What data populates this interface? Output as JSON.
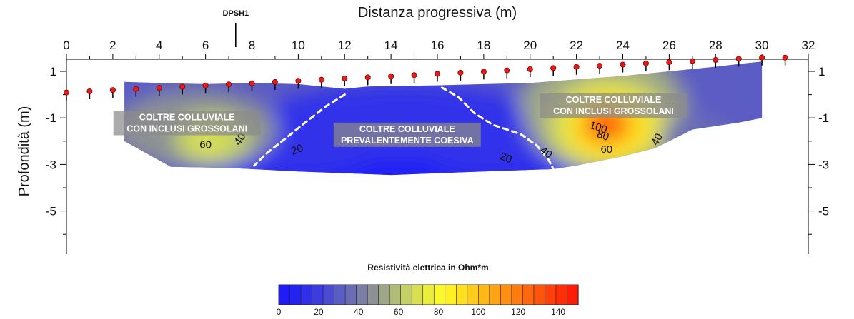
{
  "chart_data": {
    "type": "heatmap",
    "title": "",
    "xlabel": "Distanza progressiva (m)",
    "ylabel": "Profondità (m)",
    "xlim": [
      0,
      32
    ],
    "ylim": [
      -6,
      1.6
    ],
    "x_ticks": [
      "0",
      "2",
      "4",
      "6",
      "8",
      "10",
      "12",
      "14",
      "16",
      "18",
      "20",
      "22",
      "24",
      "26",
      "28",
      "30",
      "32"
    ],
    "y_ticks": [
      "1",
      "-1",
      "-3",
      "-5"
    ],
    "y_tick_values": [
      1,
      -1,
      -3,
      -5
    ],
    "electrodes": {
      "x": [
        0,
        1,
        2,
        3,
        4,
        5,
        6,
        7,
        8,
        9,
        10,
        11,
        12,
        13,
        14,
        15,
        16,
        17,
        18,
        19,
        20,
        21,
        22,
        23,
        24,
        25,
        26,
        27,
        28,
        29,
        30,
        31
      ],
      "y": [
        0,
        0.05,
        0.1,
        0.15,
        0.2,
        0.25,
        0.3,
        0.35,
        0.4,
        0.45,
        0.5,
        0.55,
        0.6,
        0.65,
        0.7,
        0.75,
        0.8,
        0.85,
        0.9,
        0.95,
        1.0,
        1.05,
        1.1,
        1.15,
        1.2,
        1.25,
        1.3,
        1.35,
        1.4,
        1.45,
        1.5,
        1.5
      ]
    },
    "marker": {
      "label": "DPSH1",
      "x": 7.3
    },
    "zones": [
      {
        "line1": "COLTRE COLLUVIALE",
        "line2": "CON INCLUSI GROSSOLANI",
        "x": 5.2,
        "y": -1.1
      },
      {
        "line1": "COLTRE COLLUVIALE",
        "line2": "PREVALENTEMENTE COESIVA",
        "x": 14.7,
        "y": -1.6
      },
      {
        "line1": "COLTRE COLLUVIALE",
        "line2": "CON INCLUSI GROSSOLANI",
        "x": 23.6,
        "y": -0.35
      }
    ],
    "contour_labels": [
      {
        "text": "60",
        "x": 6.0,
        "y": -2.3,
        "rot": 0
      },
      {
        "text": "40",
        "x": 7.6,
        "y": -2.0,
        "rot": -55
      },
      {
        "text": "20",
        "x": 10.0,
        "y": -2.5,
        "rot": -20
      },
      {
        "text": "20",
        "x": 18.9,
        "y": -2.85,
        "rot": 22
      },
      {
        "text": "40",
        "x": 20.6,
        "y": -2.6,
        "rot": 38
      },
      {
        "text": "100",
        "x": 22.9,
        "y": -1.55,
        "rot": 18
      },
      {
        "text": "80",
        "x": 23.1,
        "y": -1.9,
        "rot": 18
      },
      {
        "text": "60",
        "x": 23.3,
        "y": -2.5,
        "rot": 0
      },
      {
        "text": "40",
        "x": 25.6,
        "y": -2.0,
        "rot": -60
      }
    ],
    "legend": {
      "title": "Resistività elettrica in Ohm*m",
      "min": 0,
      "max": 150,
      "ticks": [
        "0",
        "20",
        "40",
        "60",
        "80",
        "100",
        "120",
        "140"
      ],
      "tick_values": [
        0,
        20,
        40,
        60,
        80,
        100,
        120,
        140
      ],
      "colors": [
        "#1f1cf8",
        "#2424f2",
        "#3030ea",
        "#3c3ce0",
        "#4b4cd4",
        "#5b5cc4",
        "#6a6cb4",
        "#7a7ea4",
        "#8c9194",
        "#9ea688",
        "#b0bc78",
        "#c3d066",
        "#d8e052",
        "#ecee3e",
        "#fcf82c",
        "#fff024",
        "#ffe01e",
        "#ffcc1a",
        "#ffb816",
        "#ffa414",
        "#ff9012",
        "#ff7c10",
        "#ff680e",
        "#ff540c",
        "#ff400a",
        "#ff2e08",
        "#ff1c06"
      ]
    },
    "grid": false
  }
}
